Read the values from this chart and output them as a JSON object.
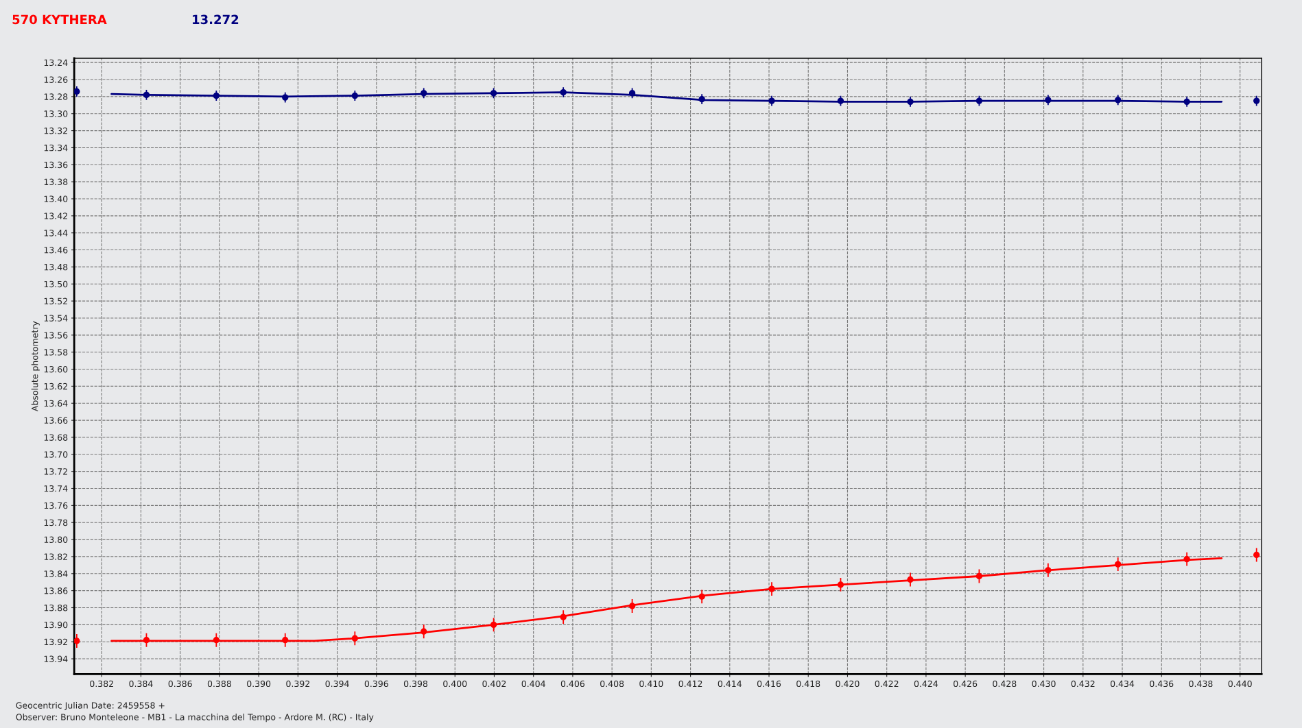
{
  "chart_data": {
    "type": "scatter",
    "title": "570 KYTHERA",
    "subtitle": "13.272",
    "ylabel": "Absolute photometry",
    "annotations": [
      "Geocentric Julian Date: 2459558 +",
      "Observer: Bruno Monteleone - MB1 - La macchina del Tempo - Ardore M. (RC) - Italy"
    ],
    "x": [
      0.38073,
      0.38428,
      0.38784,
      0.39135,
      0.3949,
      0.39841,
      0.40197,
      0.40552,
      0.40903,
      0.41258,
      0.41614,
      0.41965,
      0.4232,
      0.42671,
      0.43022,
      0.43378,
      0.43729,
      0.44084
    ],
    "series": [
      {
        "color": "#000080",
        "values": [
          13.274,
          13.278,
          13.279,
          13.281,
          13.279,
          13.276,
          13.276,
          13.275,
          13.276,
          13.283,
          13.285,
          13.285,
          13.286,
          13.285,
          13.284,
          13.284,
          13.286,
          13.285
        ],
        "errors": [
          0.006,
          0.006,
          0.006,
          0.006,
          0.006,
          0.006,
          0.006,
          0.006,
          0.006,
          0.006,
          0.006,
          0.006,
          0.006,
          0.006,
          0.006,
          0.006,
          0.006,
          0.006
        ]
      },
      {
        "color": "#ff0000",
        "values": [
          13.919,
          13.918,
          13.918,
          13.918,
          13.916,
          13.908,
          13.9,
          13.891,
          13.878,
          13.867,
          13.858,
          13.853,
          13.847,
          13.843,
          13.836,
          13.829,
          13.823,
          13.818
        ],
        "errors": [
          0.008,
          0.008,
          0.008,
          0.008,
          0.008,
          0.008,
          0.008,
          0.008,
          0.008,
          0.008,
          0.008,
          0.008,
          0.008,
          0.008,
          0.008,
          0.008,
          0.008,
          0.008
        ]
      },
      {
        "type": "line",
        "color": "#000080",
        "marker": "none",
        "x": [
          0.3825,
          0.38428,
          0.38784,
          0.39135,
          0.3949,
          0.39841,
          0.40197,
          0.40552,
          0.40903,
          0.41258,
          0.41614,
          0.41965,
          0.4232,
          0.42671,
          0.43022,
          0.43378,
          0.43729,
          0.43906
        ],
        "values": [
          13.277,
          13.278,
          13.279,
          13.28,
          13.279,
          13.277,
          13.276,
          13.275,
          13.278,
          13.284,
          13.285,
          13.286,
          13.286,
          13.285,
          13.285,
          13.285,
          13.286,
          13.286
        ]
      },
      {
        "type": "line",
        "color": "#ff0000",
        "marker": "none",
        "x": [
          0.3825,
          0.38784,
          0.39283,
          0.3949,
          0.39841,
          0.40197,
          0.40552,
          0.40903,
          0.41258,
          0.41614,
          0.41965,
          0.4232,
          0.42671,
          0.43022,
          0.43378,
          0.43729,
          0.43906
        ],
        "values": [
          13.919,
          13.919,
          13.919,
          13.916,
          13.909,
          13.9,
          13.89,
          13.877,
          13.866,
          13.858,
          13.853,
          13.848,
          13.843,
          13.836,
          13.83,
          13.824,
          13.822
        ]
      }
    ],
    "marker": "circle",
    "grid": true,
    "legend": false,
    "xlim": [
      0.3806,
      0.4411
    ],
    "ylim": [
      13.958,
      13.235
    ],
    "xticks": [
      {
        "value": 0.382,
        "label": "0.382"
      },
      {
        "value": 0.384,
        "label": "0.384"
      },
      {
        "value": 0.386,
        "label": "0.386"
      },
      {
        "value": 0.388,
        "label": "0.388"
      },
      {
        "value": 0.39,
        "label": "0.390"
      },
      {
        "value": 0.392,
        "label": "0.392"
      },
      {
        "value": 0.394,
        "label": "0.394"
      },
      {
        "value": 0.396,
        "label": "0.396"
      },
      {
        "value": 0.398,
        "label": "0.398"
      },
      {
        "value": 0.4,
        "label": "0.400"
      },
      {
        "value": 0.402,
        "label": "0.402"
      },
      {
        "value": 0.404,
        "label": "0.404"
      },
      {
        "value": 0.406,
        "label": "0.406"
      },
      {
        "value": 0.408,
        "label": "0.408"
      },
      {
        "value": 0.41,
        "label": "0.410"
      },
      {
        "value": 0.412,
        "label": "0.412"
      },
      {
        "value": 0.414,
        "label": "0.414"
      },
      {
        "value": 0.416,
        "label": "0.416"
      },
      {
        "value": 0.418,
        "label": "0.418"
      },
      {
        "value": 0.42,
        "label": "0.420"
      },
      {
        "value": 0.422,
        "label": "0.422"
      },
      {
        "value": 0.424,
        "label": "0.424"
      },
      {
        "value": 0.426,
        "label": "0.426"
      },
      {
        "value": 0.428,
        "label": "0.428"
      },
      {
        "value": 0.43,
        "label": "0.430"
      },
      {
        "value": 0.432,
        "label": "0.432"
      },
      {
        "value": 0.434,
        "label": "0.434"
      },
      {
        "value": 0.436,
        "label": "0.436"
      },
      {
        "value": 0.438,
        "label": "0.438"
      },
      {
        "value": 0.44,
        "label": "0.440"
      }
    ],
    "yticks": [
      13.24,
      13.26,
      13.28,
      {
        "value": 13.3,
        "label": "13.30"
      },
      13.32,
      13.34,
      13.36,
      13.38,
      {
        "value": 13.4,
        "label": "13.40"
      },
      13.42,
      13.44,
      13.46,
      13.48,
      {
        "value": 13.5,
        "label": "13.50"
      },
      13.52,
      13.54,
      13.56,
      13.58,
      {
        "value": 13.6,
        "label": "13.60"
      },
      13.62,
      13.64,
      13.66,
      13.68,
      {
        "value": 13.7,
        "label": "13.70"
      },
      13.72,
      13.74,
      13.76,
      13.78,
      {
        "value": 13.8,
        "label": "13.80"
      },
      13.82,
      13.84,
      13.86,
      13.88,
      {
        "value": 13.9,
        "label": "13.90"
      },
      13.92,
      13.94
    ]
  }
}
